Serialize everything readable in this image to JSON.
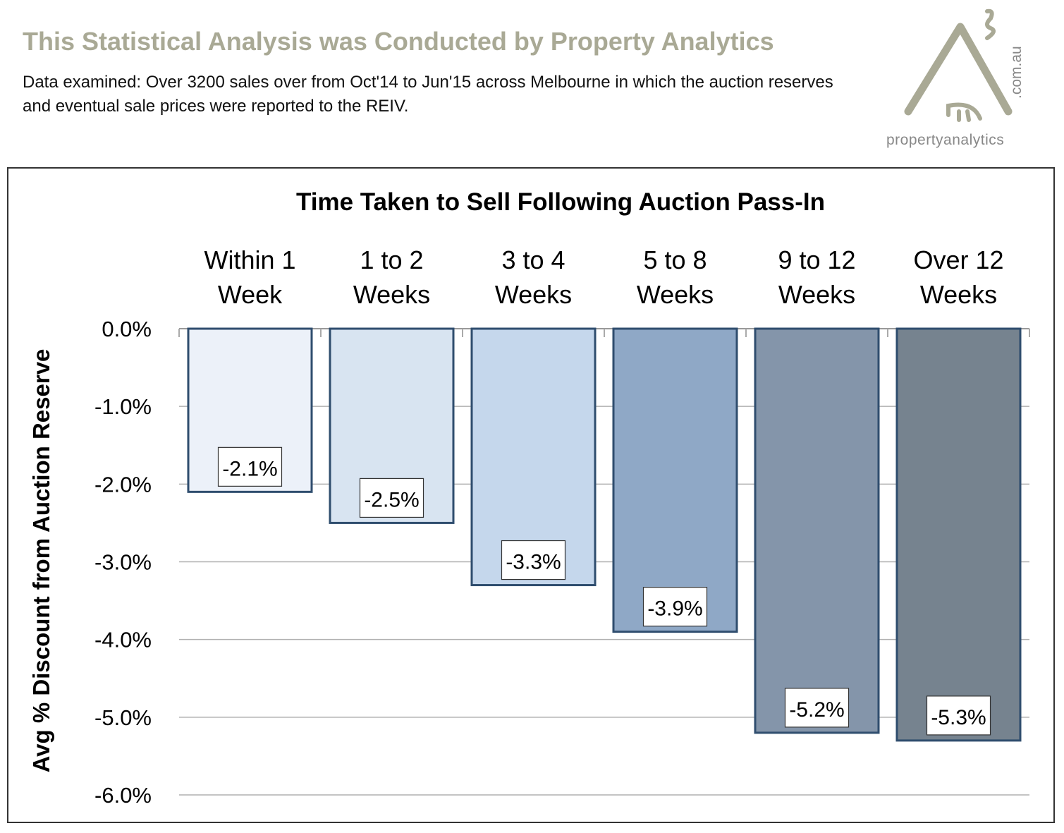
{
  "header": {
    "title": "This Statistical Analysis was Conducted  by Property Analytics",
    "subtitle": "Data examined: Over 3200 sales over from Oct'14 to Jun'15 across Melbourne in which the auction reserves and eventual sale prices were reported to the REIV."
  },
  "logo": {
    "text": "propertyanalytics",
    "domain": ".com.au"
  },
  "chart_data": {
    "type": "bar",
    "title": "Time Taken to Sell Following Auction Pass-In",
    "xlabel": "",
    "ylabel": "Avg % Discount from Auction Reserve",
    "categories": [
      [
        "Within 1",
        "Week"
      ],
      [
        "1 to 2",
        "Weeks"
      ],
      [
        "3 to 4",
        "Weeks"
      ],
      [
        "5 to 8",
        "Weeks"
      ],
      [
        "9 to 12",
        "Weeks"
      ],
      [
        "Over 12",
        "Weeks"
      ]
    ],
    "values": [
      -2.1,
      -2.5,
      -3.3,
      -3.9,
      -5.2,
      -5.3
    ],
    "data_labels": [
      "-2.1%",
      "-2.5%",
      "-3.3%",
      "-3.9%",
      "-5.2%",
      "-5.3%"
    ],
    "ylim": [
      -6,
      0
    ],
    "yticks": [
      0,
      -1,
      -2,
      -3,
      -4,
      -5,
      -6
    ],
    "ytick_labels": [
      "0.0%",
      "-1.0%",
      "-2.0%",
      "-3.0%",
      "-4.0%",
      "-5.0%",
      "-6.0%"
    ],
    "grid": true,
    "x_axis_position": "top",
    "bar_colors": [
      "#ecf1f9",
      "#d8e4f1",
      "#c5d7ec",
      "#8fa8c6",
      "#8495aa",
      "#76838f"
    ],
    "bar_edge_color": "#2f4d6e"
  }
}
